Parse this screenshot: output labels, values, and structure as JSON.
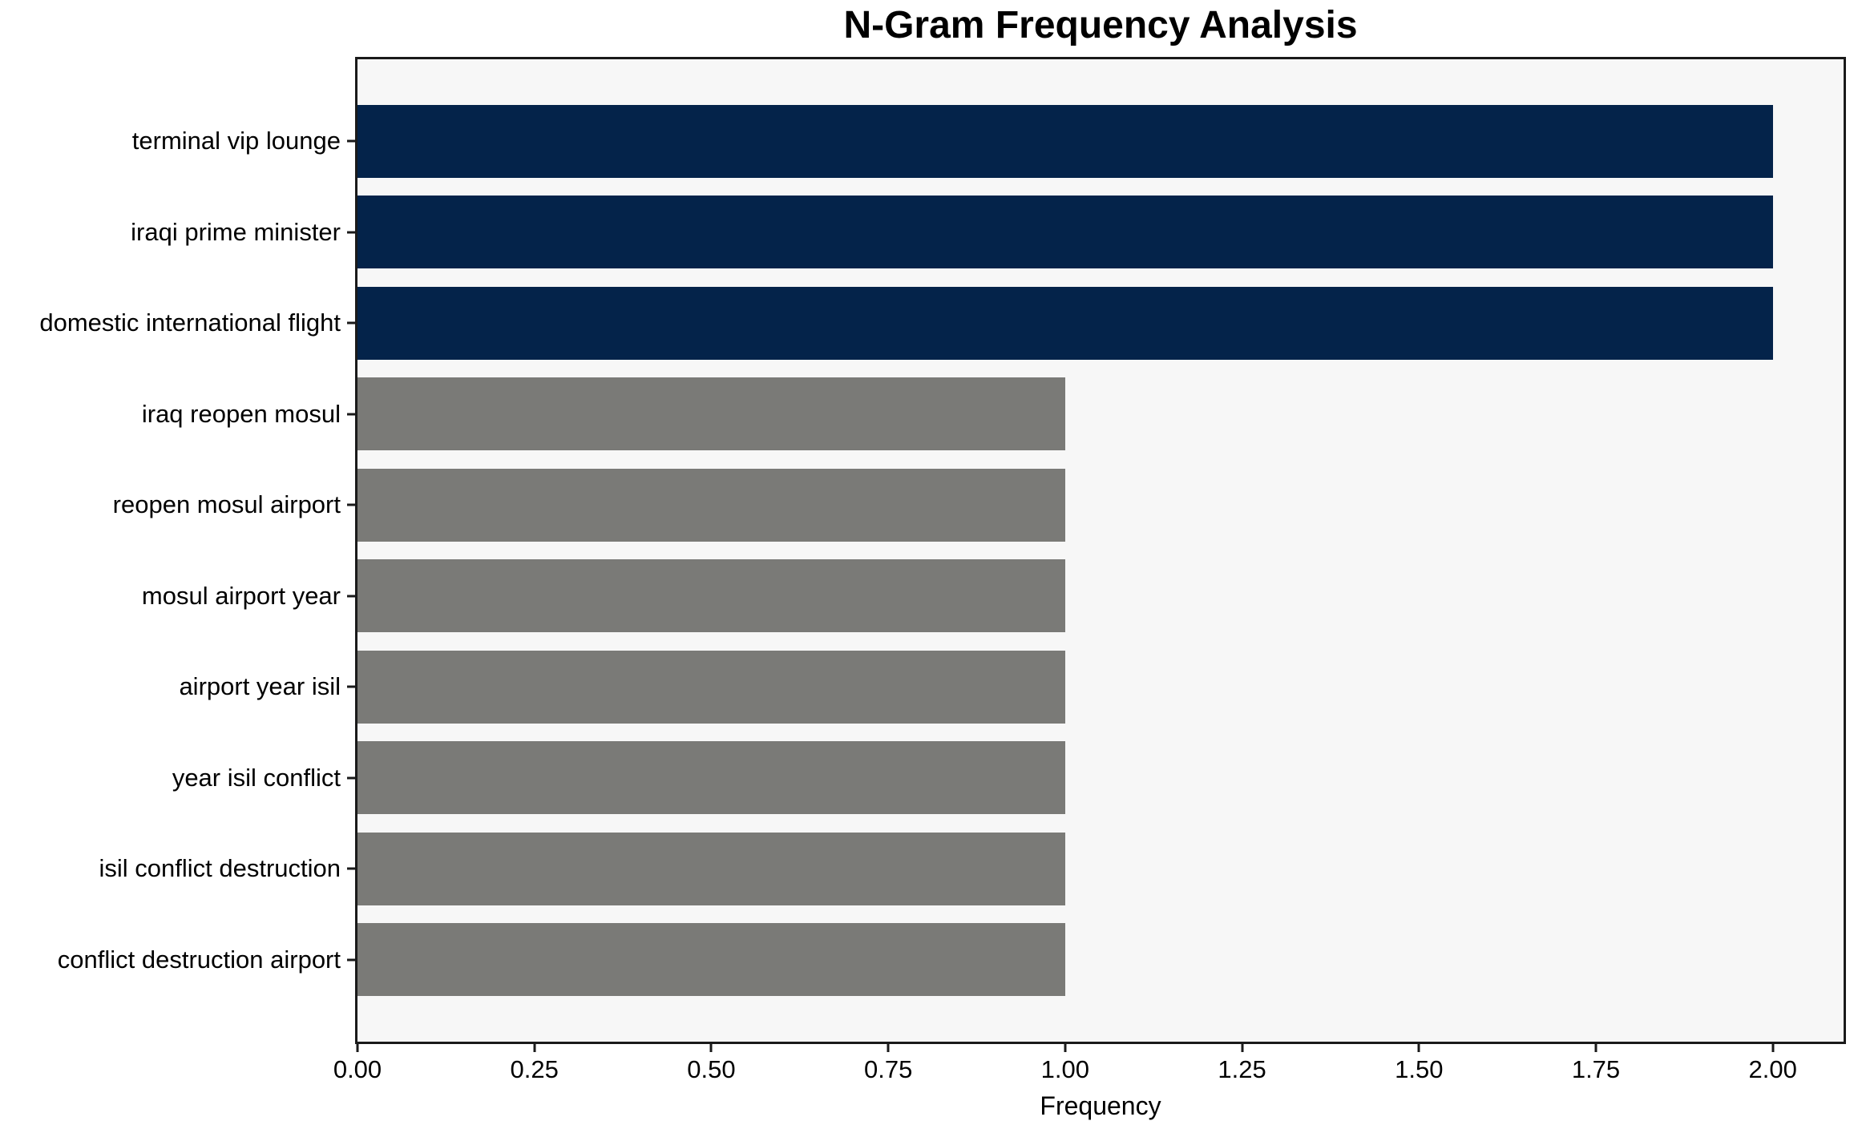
{
  "chart_data": {
    "type": "bar",
    "orientation": "horizontal",
    "title": "N-Gram Frequency Analysis",
    "xlabel": "Frequency",
    "ylabel": "",
    "categories": [
      "terminal vip lounge",
      "iraqi prime minister",
      "domestic international flight",
      "iraq reopen mosul",
      "reopen mosul airport",
      "mosul airport year",
      "airport year isil",
      "year isil conflict",
      "isil conflict destruction",
      "conflict destruction airport"
    ],
    "values": [
      2,
      2,
      2,
      1,
      1,
      1,
      1,
      1,
      1,
      1
    ],
    "bar_colors": [
      "#04234a",
      "#04234a",
      "#04234a",
      "#7a7a77",
      "#7a7a77",
      "#7a7a77",
      "#7a7a77",
      "#7a7a77",
      "#7a7a77",
      "#7a7a77"
    ],
    "xlim": [
      0,
      2.1
    ],
    "xticks": [
      0,
      0.25,
      0.5,
      0.75,
      1.0,
      1.25,
      1.5,
      1.75,
      2.0
    ],
    "xtick_labels": [
      "0.00",
      "0.25",
      "0.50",
      "0.75",
      "1.00",
      "1.25",
      "1.50",
      "1.75",
      "2.00"
    ],
    "bar_height_fraction": 0.8,
    "y_end_margin": 0.5,
    "grid": false,
    "legend": false,
    "colors": {
      "highlight_bar": "#04234a",
      "default_bar": "#7a7a77",
      "plot_background": "#f7f7f7",
      "figure_background": "#ffffff",
      "text": "#000000",
      "spine": "#1a1a1a"
    }
  }
}
